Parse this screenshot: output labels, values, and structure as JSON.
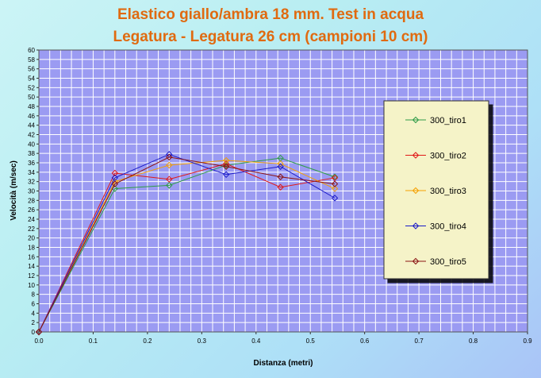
{
  "chart_data": {
    "type": "line",
    "title": "Elastico giallo/ambra 18 mm. Test in acqua",
    "subtitle": "Legatura - Legatura 26 cm (campioni 10 cm)",
    "xlabel": "Distanza (metri)",
    "ylabel": "Velocità (m/sec)",
    "xlim": [
      0,
      0.9
    ],
    "ylim": [
      0,
      60
    ],
    "x_ticks": [
      "0.0",
      "0.1",
      "0.2",
      "0.3",
      "0.4",
      "0.5",
      "0.6",
      "0.7",
      "0.8",
      "0.9"
    ],
    "y_ticks": [
      "0",
      "2",
      "4",
      "6",
      "8",
      "10",
      "12",
      "14",
      "16",
      "18",
      "20",
      "22",
      "24",
      "26",
      "28",
      "30",
      "32",
      "34",
      "36",
      "38",
      "40",
      "42",
      "44",
      "46",
      "48",
      "50",
      "52",
      "54",
      "56",
      "58",
      "60"
    ],
    "grid": true,
    "legend_position": "right",
    "colors": {
      "plot_background": "#9b9bf2",
      "grid": "#ffffff",
      "legend_background": "#f5f3c8",
      "title": "#e06a10"
    },
    "series": [
      {
        "name": "300_tiro1",
        "color": "#2e9b48",
        "x": [
          0,
          0.14,
          0.24,
          0.345,
          0.445,
          0.545
        ],
        "y": [
          0,
          30.5,
          31.2,
          35.5,
          37.0,
          33.0
        ]
      },
      {
        "name": "300_tiro2",
        "color": "#e01818",
        "x": [
          0,
          0.14,
          0.24,
          0.345,
          0.445,
          0.545
        ],
        "y": [
          0,
          33.8,
          32.5,
          35.8,
          30.8,
          32.8
        ]
      },
      {
        "name": "300_tiro3",
        "color": "#f5a000",
        "x": [
          0,
          0.14,
          0.24,
          0.345,
          0.445,
          0.545
        ],
        "y": [
          0,
          32.0,
          35.5,
          36.5,
          35.8,
          30.5
        ]
      },
      {
        "name": "300_tiro4",
        "color": "#1a1ac8",
        "x": [
          0,
          0.14,
          0.24,
          0.345,
          0.445,
          0.545
        ],
        "y": [
          0,
          32.8,
          37.8,
          33.5,
          35.2,
          28.5
        ]
      },
      {
        "name": "300_tiro5",
        "color": "#8b1414",
        "x": [
          0,
          0.14,
          0.24,
          0.345,
          0.445,
          0.545
        ],
        "y": [
          0,
          31.5,
          37.2,
          35.2,
          33.0,
          31.5
        ]
      }
    ]
  }
}
